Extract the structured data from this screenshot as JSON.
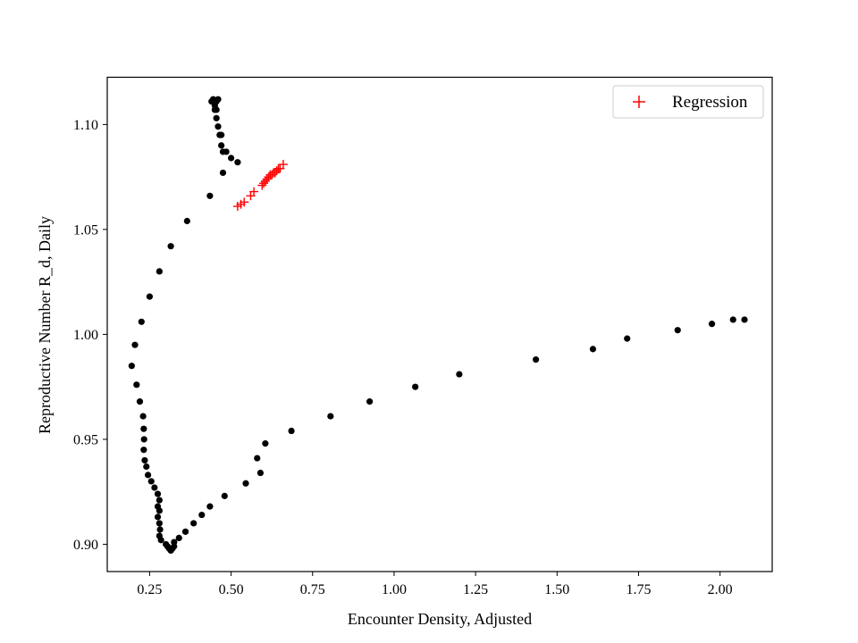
{
  "chart_data": {
    "type": "scatter",
    "title": "",
    "xlabel": "Encounter Density, Adjusted",
    "ylabel": "Reproductive Number R_d, Daily",
    "xlim": [
      0.12,
      2.16
    ],
    "ylim": [
      0.887,
      1.1225
    ],
    "xticks": [
      "0.25",
      "0.50",
      "0.75",
      "1.00",
      "1.25",
      "1.50",
      "1.75",
      "2.00"
    ],
    "yticks": [
      "0.90",
      "0.95",
      "1.00",
      "1.05",
      "1.10"
    ],
    "grid": false,
    "legend": {
      "position": "top-right",
      "entries": [
        "Regression"
      ]
    },
    "colors": {
      "observed": "#000000",
      "regression": "#ff0000"
    },
    "series": [
      {
        "marker": "circle",
        "color": "#000000",
        "points": [
          [
            0.44,
            1.111
          ],
          [
            0.445,
            1.112
          ],
          [
            0.45,
            1.109
          ],
          [
            0.455,
            1.111
          ],
          [
            0.46,
            1.112
          ],
          [
            0.45,
            1.107
          ],
          [
            0.455,
            1.107
          ],
          [
            0.455,
            1.103
          ],
          [
            0.46,
            1.099
          ],
          [
            0.465,
            1.095
          ],
          [
            0.47,
            1.095
          ],
          [
            0.47,
            1.09
          ],
          [
            0.475,
            1.087
          ],
          [
            0.485,
            1.087
          ],
          [
            0.5,
            1.084
          ],
          [
            0.52,
            1.082
          ],
          [
            0.475,
            1.077
          ],
          [
            0.435,
            1.066
          ],
          [
            0.365,
            1.054
          ],
          [
            0.315,
            1.042
          ],
          [
            0.28,
            1.03
          ],
          [
            0.25,
            1.018
          ],
          [
            0.225,
            1.006
          ],
          [
            0.205,
            0.995
          ],
          [
            0.195,
            0.985
          ],
          [
            0.21,
            0.976
          ],
          [
            0.22,
            0.968
          ],
          [
            0.23,
            0.961
          ],
          [
            0.232,
            0.955
          ],
          [
            0.233,
            0.95
          ],
          [
            0.232,
            0.945
          ],
          [
            0.235,
            0.94
          ],
          [
            0.24,
            0.937
          ],
          [
            0.245,
            0.933
          ],
          [
            0.255,
            0.93
          ],
          [
            0.265,
            0.927
          ],
          [
            0.275,
            0.924
          ],
          [
            0.28,
            0.921
          ],
          [
            0.275,
            0.918
          ],
          [
            0.28,
            0.916
          ],
          [
            0.275,
            0.913
          ],
          [
            0.28,
            0.91
          ],
          [
            0.282,
            0.907
          ],
          [
            0.28,
            0.904
          ],
          [
            0.285,
            0.902
          ],
          [
            0.3,
            0.9
          ],
          [
            0.305,
            0.899
          ],
          [
            0.31,
            0.898
          ],
          [
            0.315,
            0.897
          ],
          [
            0.32,
            0.898
          ],
          [
            0.325,
            0.899
          ],
          [
            0.325,
            0.901
          ],
          [
            0.34,
            0.903
          ],
          [
            0.36,
            0.906
          ],
          [
            0.385,
            0.91
          ],
          [
            0.41,
            0.914
          ],
          [
            0.435,
            0.918
          ],
          [
            0.48,
            0.923
          ],
          [
            0.545,
            0.929
          ],
          [
            0.59,
            0.934
          ],
          [
            0.58,
            0.941
          ],
          [
            0.605,
            0.948
          ],
          [
            0.685,
            0.954
          ],
          [
            0.805,
            0.961
          ],
          [
            0.925,
            0.968
          ],
          [
            1.065,
            0.975
          ],
          [
            1.2,
            0.981
          ],
          [
            1.435,
            0.988
          ],
          [
            1.61,
            0.993
          ],
          [
            1.715,
            0.998
          ],
          [
            1.87,
            1.002
          ],
          [
            1.975,
            1.005
          ],
          [
            2.04,
            1.007
          ],
          [
            2.075,
            1.007
          ]
        ]
      },
      {
        "name": "Regression",
        "marker": "plus",
        "color": "#ff0000",
        "points": [
          [
            0.52,
            1.061
          ],
          [
            0.53,
            1.062
          ],
          [
            0.54,
            1.063
          ],
          [
            0.56,
            1.066
          ],
          [
            0.57,
            1.068
          ],
          [
            0.595,
            1.071
          ],
          [
            0.6,
            1.072
          ],
          [
            0.605,
            1.073
          ],
          [
            0.61,
            1.074
          ],
          [
            0.615,
            1.075
          ],
          [
            0.62,
            1.076
          ],
          [
            0.625,
            1.076
          ],
          [
            0.63,
            1.077
          ],
          [
            0.635,
            1.077
          ],
          [
            0.64,
            1.078
          ],
          [
            0.645,
            1.079
          ],
          [
            0.65,
            1.079
          ],
          [
            0.66,
            1.081
          ]
        ]
      }
    ]
  }
}
